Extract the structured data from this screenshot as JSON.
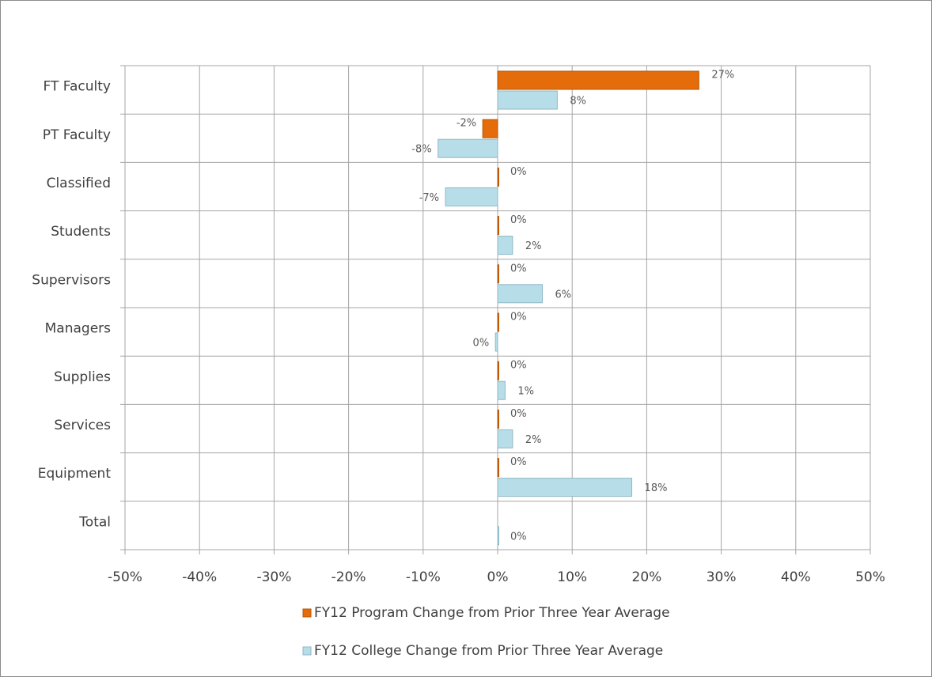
{
  "chart_data": {
    "type": "bar",
    "orientation": "horizontal",
    "categories": [
      "FT Faculty",
      "PT Faculty",
      "Classified",
      "Students",
      "Supervisors",
      "Managers",
      "Supplies",
      "Services",
      "Equipment",
      "Total"
    ],
    "series": [
      {
        "name": "FY12 Program Change from Prior Three Year Average",
        "color": "#e46c0a",
        "values": [
          27,
          -2,
          0,
          0,
          0,
          0,
          0,
          0,
          0,
          null
        ],
        "value_labels": [
          "27%",
          "-2%",
          "0%",
          "0%",
          "0%",
          "0%",
          "0%",
          "0%",
          "0%",
          null
        ]
      },
      {
        "name": "FY12 College Change from Prior Three Year Average",
        "color": "#b7dde8",
        "values": [
          8,
          -8,
          -7,
          2,
          6,
          -0.3,
          1,
          2,
          18,
          0
        ],
        "value_labels": [
          "8%",
          "-8%",
          "-7%",
          "2%",
          "6%",
          "0%",
          "1%",
          "2%",
          "18%",
          "0%"
        ]
      }
    ],
    "xlim": [
      -50,
      50
    ],
    "xticks": [
      {
        "value": -50,
        "label": "-50%"
      },
      {
        "value": -40,
        "label": "-40%"
      },
      {
        "value": -30,
        "label": "-30%"
      },
      {
        "value": -20,
        "label": "-20%"
      },
      {
        "value": -10,
        "label": "-10%"
      },
      {
        "value": 0,
        "label": "0%"
      },
      {
        "value": 10,
        "label": "10%"
      },
      {
        "value": 20,
        "label": "20%"
      },
      {
        "value": 30,
        "label": "30%"
      },
      {
        "value": 40,
        "label": "40%"
      },
      {
        "value": 50,
        "label": "50%"
      }
    ],
    "grid": true,
    "legend": "bottom"
  }
}
